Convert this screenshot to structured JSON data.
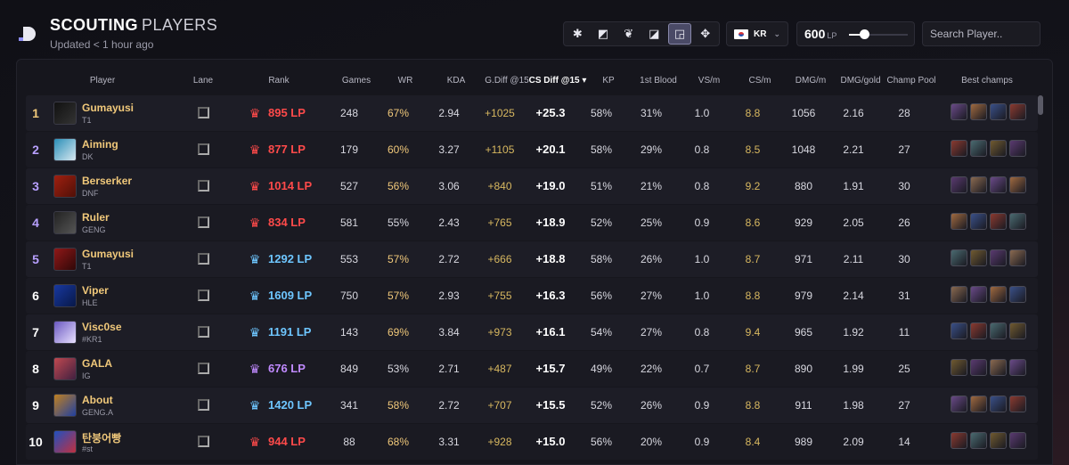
{
  "header": {
    "title_bold": "SCOUTING",
    "title_light": "PLAYERS",
    "updated": "Updated < 1 hour ago"
  },
  "filters": {
    "lanes": [
      {
        "icon": "all-lanes-icon",
        "glyph": "✱",
        "active": false
      },
      {
        "icon": "top-lane-icon",
        "glyph": "◩",
        "active": false
      },
      {
        "icon": "jungle-icon",
        "glyph": "❦",
        "active": false
      },
      {
        "icon": "mid-lane-icon",
        "glyph": "◪",
        "active": false
      },
      {
        "icon": "bot-lane-icon",
        "glyph": "◲",
        "active": true
      },
      {
        "icon": "support-icon",
        "glyph": "✥",
        "active": false
      }
    ],
    "region": "KR",
    "lp_value": "600",
    "lp_unit": "LP",
    "lp_fraction": 0.25,
    "search_placeholder": "Search Player.."
  },
  "columns": {
    "player": "Player",
    "lane": "Lane",
    "rank": "Rank",
    "games": "Games",
    "wr": "WR",
    "kda": "KDA",
    "gdiff": "G.Diff @15",
    "csdiff": "CS Diff @15 ▾",
    "kp": "KP",
    "firstblood": "1st Blood",
    "vsm": "VS/m",
    "csm": "CS/m",
    "dmgm": "DMG/m",
    "dmggold": "DMG/gold",
    "pool": "Champ Pool",
    "best": "Best champs"
  },
  "colors": {
    "gold": "#f0c87a",
    "red": "#ff4a4a",
    "blue": "#6ec6ff",
    "purple": "#c08aff",
    "yellow": "#d8b860",
    "green": "#c8a850"
  },
  "rows": [
    {
      "pos": "1",
      "name": "Gumayusi",
      "team": "T1",
      "lp": "895 LP",
      "games": "248",
      "wr": "67%",
      "kda": "2.94",
      "gdiff": "+1025",
      "csdiff": "+25.3",
      "kp": "58%",
      "fb": "31%",
      "vsm": "1.0",
      "csm": "8.8",
      "dmgm": "1056",
      "dmggold": "2.16",
      "pool": "28"
    },
    {
      "pos": "2",
      "name": "Aiming",
      "team": "DK",
      "lp": "877 LP",
      "games": "179",
      "wr": "60%",
      "kda": "3.27",
      "gdiff": "+1105",
      "csdiff": "+20.1",
      "kp": "58%",
      "fb": "29%",
      "vsm": "0.8",
      "csm": "8.5",
      "dmgm": "1048",
      "dmggold": "2.21",
      "pool": "27"
    },
    {
      "pos": "3",
      "name": "Berserker",
      "team": "DNF",
      "lp": "1014 LP",
      "games": "527",
      "wr": "56%",
      "kda": "3.06",
      "gdiff": "+840",
      "csdiff": "+19.0",
      "kp": "51%",
      "fb": "21%",
      "vsm": "0.8",
      "csm": "9.2",
      "dmgm": "880",
      "dmggold": "1.91",
      "pool": "30"
    },
    {
      "pos": "4",
      "name": "Ruler",
      "team": "GENG",
      "lp": "834 LP",
      "games": "581",
      "wr": "55%",
      "kda": "2.43",
      "gdiff": "+765",
      "csdiff": "+18.9",
      "kp": "52%",
      "fb": "25%",
      "vsm": "0.9",
      "csm": "8.6",
      "dmgm": "929",
      "dmggold": "2.05",
      "pool": "26"
    },
    {
      "pos": "5",
      "name": "Gumayusi",
      "team": "T1",
      "lp": "1292 LP",
      "games": "553",
      "wr": "57%",
      "kda": "2.72",
      "gdiff": "+666",
      "csdiff": "+18.8",
      "kp": "58%",
      "fb": "26%",
      "vsm": "1.0",
      "csm": "8.7",
      "dmgm": "971",
      "dmggold": "2.11",
      "pool": "30"
    },
    {
      "pos": "6",
      "name": "Viper",
      "team": "HLE",
      "lp": "1609 LP",
      "games": "750",
      "wr": "57%",
      "kda": "2.93",
      "gdiff": "+755",
      "csdiff": "+16.3",
      "kp": "56%",
      "fb": "27%",
      "vsm": "1.0",
      "csm": "8.8",
      "dmgm": "979",
      "dmggold": "2.14",
      "pool": "31"
    },
    {
      "pos": "7",
      "name": "Visc0se",
      "team": "#KR1",
      "lp": "1191 LP",
      "games": "143",
      "wr": "69%",
      "kda": "3.84",
      "gdiff": "+973",
      "csdiff": "+16.1",
      "kp": "54%",
      "fb": "27%",
      "vsm": "0.8",
      "csm": "9.4",
      "dmgm": "965",
      "dmggold": "1.92",
      "pool": "11"
    },
    {
      "pos": "8",
      "name": "GALA",
      "team": "IG",
      "lp": "676 LP",
      "games": "849",
      "wr": "53%",
      "kda": "2.71",
      "gdiff": "+487",
      "csdiff": "+15.7",
      "kp": "49%",
      "fb": "22%",
      "vsm": "0.7",
      "csm": "8.7",
      "dmgm": "890",
      "dmggold": "1.99",
      "pool": "25"
    },
    {
      "pos": "9",
      "name": "About",
      "team": "GENG.A",
      "lp": "1420 LP",
      "games": "341",
      "wr": "58%",
      "kda": "2.72",
      "gdiff": "+707",
      "csdiff": "+15.5",
      "kp": "52%",
      "fb": "26%",
      "vsm": "0.9",
      "csm": "8.8",
      "dmgm": "911",
      "dmggold": "1.98",
      "pool": "27"
    },
    {
      "pos": "10",
      "name": "탄붕어빵",
      "team": "#st",
      "lp": "944 LP",
      "games": "88",
      "wr": "68%",
      "kda": "3.31",
      "gdiff": "+928",
      "csdiff": "+15.0",
      "kp": "56%",
      "fb": "20%",
      "vsm": "0.9",
      "csm": "8.4",
      "dmgm": "989",
      "dmggold": "2.09",
      "pool": "14"
    }
  ],
  "scroll": {
    "position": 0.0
  }
}
